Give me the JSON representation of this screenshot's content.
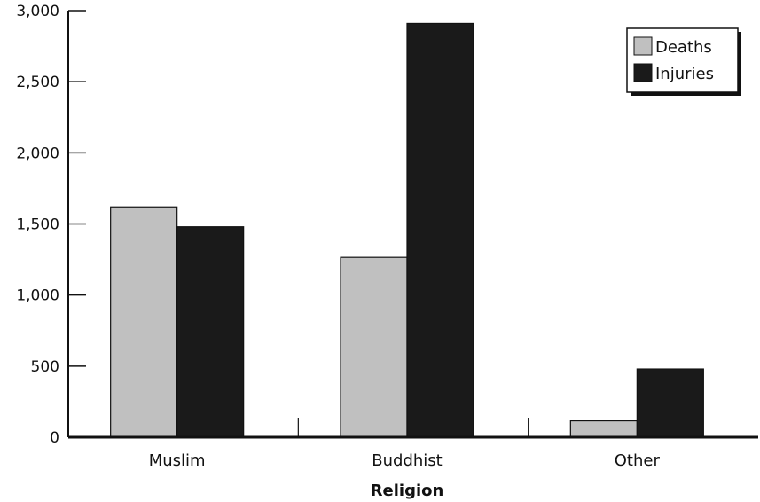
{
  "chart_data": {
    "type": "bar",
    "categories": [
      "Muslim",
      "Buddhist",
      "Other"
    ],
    "series": [
      {
        "name": "Deaths",
        "values": [
          1620,
          1265,
          115
        ],
        "color": "#c0c0c0"
      },
      {
        "name": "Injuries",
        "values": [
          1480,
          2910,
          480
        ],
        "color": "#1a1a1a"
      }
    ],
    "xlabel": "Religion",
    "ylabel": "",
    "ylim": [
      0,
      3000
    ],
    "yticks": [
      "0",
      "500",
      "1,000",
      "1,500",
      "2,000",
      "2,500",
      "3,000"
    ],
    "grid": false,
    "legend_position": "top-right"
  }
}
